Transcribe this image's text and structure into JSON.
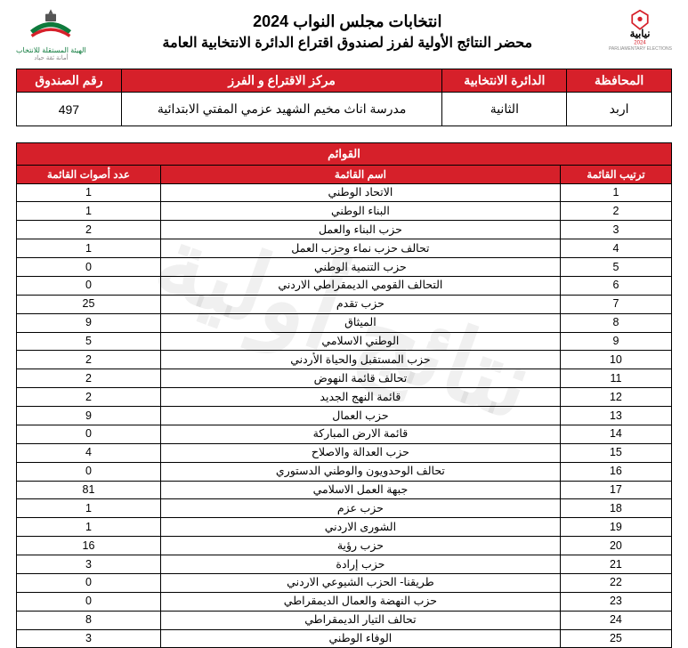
{
  "header": {
    "title1": "انتخابات مجلس النواب 2024",
    "title2": "محضر النتائج الأولية لفرز لصندوق اقتراع الدائرة الانتخابية العامة",
    "left_logo_caption": "الهيئة المستقلة للانتخاب",
    "left_logo_sub": "أمانة ثقة حياد",
    "right_logo_top": "نيابية",
    "right_logo_year": "2024",
    "right_logo_sub": "PARLIAMENTARY ELECTIONS"
  },
  "colors": {
    "brand_red": "#d6202a",
    "brand_green": "#0e7a3c"
  },
  "info": {
    "headers": {
      "governorate": "المحافظة",
      "district": "الدائرة الانتخابية",
      "center": "مركز الاقتراع و الفرز",
      "box": "رقم الصندوق"
    },
    "values": {
      "governorate": "اربد",
      "district": "الثانية",
      "center": "مدرسة اناث مخيم الشهيد عزمي المفتي الابتدائية",
      "box": "497"
    }
  },
  "lists": {
    "banner": "القوائم",
    "headers": {
      "rank": "ترتيب القائمة",
      "name": "اسم القائمة",
      "votes": "عدد أصوات القائمة"
    },
    "rows": [
      {
        "rank": "1",
        "name": "الاتحاد الوطني",
        "votes": "1"
      },
      {
        "rank": "2",
        "name": "البناء الوطني",
        "votes": "1"
      },
      {
        "rank": "3",
        "name": "حزب البناء والعمل",
        "votes": "2"
      },
      {
        "rank": "4",
        "name": "تحالف حزب نماء وحزب العمل",
        "votes": "1"
      },
      {
        "rank": "5",
        "name": "حزب التنمية الوطني",
        "votes": "0"
      },
      {
        "rank": "6",
        "name": "التحالف القومي الديمقراطي الاردني",
        "votes": "0"
      },
      {
        "rank": "7",
        "name": "حزب تقدم",
        "votes": "25"
      },
      {
        "rank": "8",
        "name": "الميثاق",
        "votes": "9"
      },
      {
        "rank": "9",
        "name": "الوطني الاسلامي",
        "votes": "5"
      },
      {
        "rank": "10",
        "name": "حزب المستقبل والحياة الأردني",
        "votes": "2"
      },
      {
        "rank": "11",
        "name": "تحالف قائمة النهوض",
        "votes": "2"
      },
      {
        "rank": "12",
        "name": "قائمة النهج الجديد",
        "votes": "2"
      },
      {
        "rank": "13",
        "name": "حزب العمال",
        "votes": "9"
      },
      {
        "rank": "14",
        "name": "قائمة الارض المباركة",
        "votes": "0"
      },
      {
        "rank": "15",
        "name": "حزب العدالة والاصلاح",
        "votes": "4"
      },
      {
        "rank": "16",
        "name": "تحالف الوحدويون والوطني الدستوري",
        "votes": "0"
      },
      {
        "rank": "17",
        "name": "جبهة العمل الاسلامي",
        "votes": "81"
      },
      {
        "rank": "18",
        "name": "حزب عزم",
        "votes": "1"
      },
      {
        "rank": "19",
        "name": "الشورى الاردني",
        "votes": "1"
      },
      {
        "rank": "20",
        "name": "حزب رؤية",
        "votes": "16"
      },
      {
        "rank": "21",
        "name": "حزب إرادة",
        "votes": "3"
      },
      {
        "rank": "22",
        "name": "طريقنا- الحزب الشيوعي الاردني",
        "votes": "0"
      },
      {
        "rank": "23",
        "name": "حزب النهضة والعمال الديمقراطي",
        "votes": "0"
      },
      {
        "rank": "24",
        "name": "تحالف التيار الديمقراطي",
        "votes": "8"
      },
      {
        "rank": "25",
        "name": "الوفاء الوطني",
        "votes": "3"
      }
    ]
  },
  "watermark": "نتائج أولية"
}
